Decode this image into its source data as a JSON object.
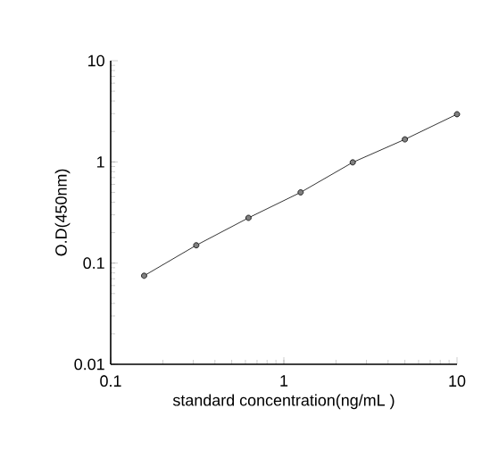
{
  "chart_data": {
    "type": "line",
    "xlabel": "standard concentration(ng/mL )",
    "ylabel": "O.D(450nm)",
    "x": [
      0.156,
      0.312,
      0.625,
      1.25,
      2.5,
      5,
      10
    ],
    "series": [
      {
        "color": "#000000",
        "values": [
          0.075,
          0.15,
          0.28,
          0.5,
          0.99,
          1.67,
          2.96
        ]
      }
    ],
    "log": "xy",
    "xlim": [
      0.1,
      10
    ],
    "ylim": [
      0.01,
      10
    ],
    "xticks": [
      0.1,
      1,
      10
    ],
    "yticks": [
      0.01,
      0.1,
      1,
      10
    ],
    "grid": false,
    "marker": "circle",
    "line_style": "solid"
  }
}
